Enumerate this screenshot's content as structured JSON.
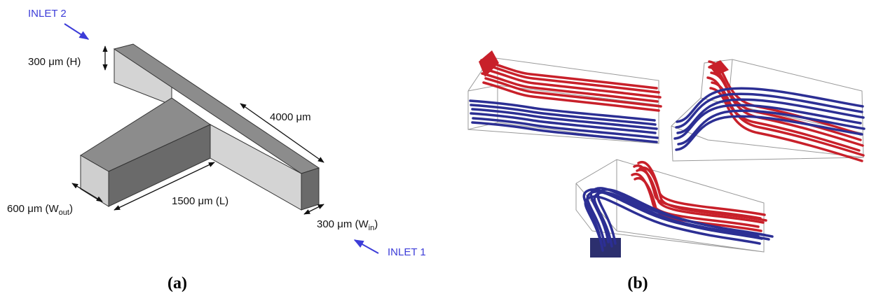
{
  "panel_a": {
    "inlet_2": "INLET 2",
    "height": "300 μm (H)",
    "inlet_length": "4000 μm",
    "outlet_width": {
      "text": "600 μm (W",
      "sub": "out",
      "close": ")"
    },
    "outlet_length": "1500 μm (L)",
    "inlet_width": {
      "text": "300 μm (W",
      "sub": "in",
      "close": ")"
    },
    "inlet_1": "INLET 1"
  },
  "captions": [
    "(a)",
    "(b)"
  ]
}
